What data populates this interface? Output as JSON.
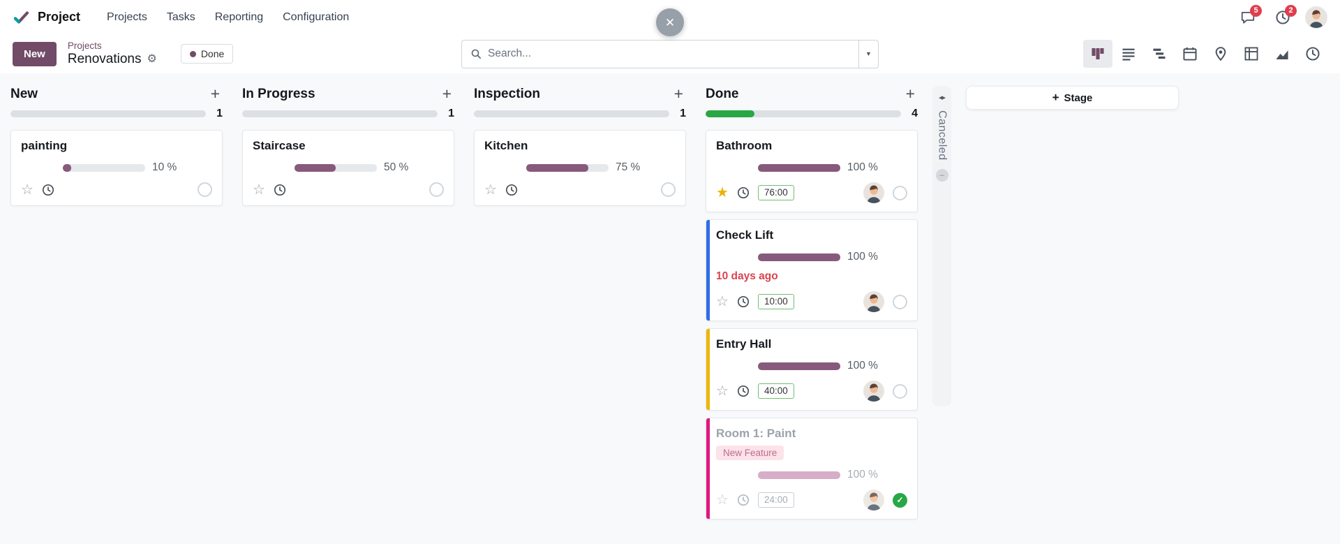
{
  "icons": {
    "gear": "⚙",
    "caret_down": "▼",
    "close": "✕",
    "plus": "+",
    "unfold": "◂▸",
    "star_on": "★",
    "star_off": "☆",
    "check": "✓",
    "collapsed_badge": "–"
  },
  "navbar": {
    "app_name": "Project",
    "menus": [
      "Projects",
      "Tasks",
      "Reporting",
      "Configuration"
    ],
    "messages_badge": "5",
    "activities_badge": "2"
  },
  "control_panel": {
    "new_button": "New",
    "breadcrumb_parent": "Projects",
    "breadcrumb_current": "Renovations",
    "stage_pill": "Done",
    "search_placeholder": "Search..."
  },
  "view_switcher": [
    {
      "name": "kanban",
      "active": true
    },
    {
      "name": "list",
      "active": false
    },
    {
      "name": "gantt",
      "active": false
    },
    {
      "name": "calendar",
      "active": false
    },
    {
      "name": "map",
      "active": false
    },
    {
      "name": "pivot",
      "active": false
    },
    {
      "name": "graph",
      "active": false
    },
    {
      "name": "activity",
      "active": false
    }
  ],
  "board": {
    "add_stage_label": "Stage",
    "collapsed_column": {
      "name": "Canceled"
    },
    "columns": [
      {
        "name": "New",
        "count": "1",
        "bar_fill": 0,
        "cards": [
          {
            "title": "painting",
            "progress": 10,
            "progress_label": "10 %",
            "starred": false,
            "avatar": false,
            "state": "normal"
          }
        ]
      },
      {
        "name": "In Progress",
        "count": "1",
        "bar_fill": 0,
        "cards": [
          {
            "title": "Staircase",
            "progress": 50,
            "progress_label": "50 %",
            "starred": false,
            "avatar": false,
            "state": "normal"
          }
        ]
      },
      {
        "name": "Inspection",
        "count": "1",
        "bar_fill": 0,
        "cards": [
          {
            "title": "Kitchen",
            "progress": 75,
            "progress_label": "75 %",
            "starred": false,
            "avatar": false,
            "state": "normal"
          }
        ]
      },
      {
        "name": "Done",
        "count": "4",
        "bar_fill": 25,
        "cards": [
          {
            "title": "Bathroom",
            "progress": 100,
            "progress_label": "100 %",
            "starred": true,
            "hours": "76:00",
            "avatar": true,
            "state": "normal"
          },
          {
            "title": "Check Lift",
            "progress": 100,
            "progress_label": "100 %",
            "overdue": "10 days ago",
            "starred": false,
            "hours": "10:00",
            "avatar": true,
            "accent": "#2E6DE5",
            "state": "normal"
          },
          {
            "title": "Entry Hall",
            "progress": 100,
            "progress_label": "100 %",
            "starred": false,
            "hours": "40:00",
            "avatar": true,
            "accent": "#F0B505",
            "state": "normal"
          },
          {
            "title": "Room 1: Paint",
            "tag": "New Feature",
            "progress": 100,
            "progress_label": "100 %",
            "starred": false,
            "hours": "24:00",
            "avatar": true,
            "accent": "#E0187E",
            "muted": true,
            "state": "done"
          }
        ]
      }
    ]
  },
  "colors": {
    "primary": "#714B67",
    "progress_fill": "#875A7B",
    "done_green": "#28a745",
    "overdue_red": "#d9434f",
    "star_gold": "#eab308"
  }
}
